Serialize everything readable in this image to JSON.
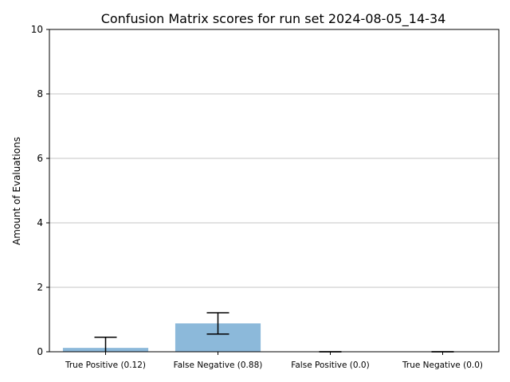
{
  "chart_data": {
    "type": "bar",
    "title": "Confusion Matrix scores for run set 2024-08-05_14-34",
    "xlabel": "",
    "ylabel": "Amount of Evaluations",
    "categories": [
      "True Positive (0.12)",
      "False Negative (0.88)",
      "False Positive (0.0)",
      "True Negative (0.0)"
    ],
    "values": [
      0.12,
      0.88,
      0.0,
      0.0
    ],
    "error": [
      0.33,
      0.33,
      0.0,
      0.0
    ],
    "ylim": [
      0,
      10
    ],
    "yticks": [
      0,
      2,
      4,
      6,
      8,
      10
    ],
    "grid": "y",
    "bar_color": "#8cb9da",
    "error_color": "#000000",
    "grid_color": "#b0b0b0"
  }
}
